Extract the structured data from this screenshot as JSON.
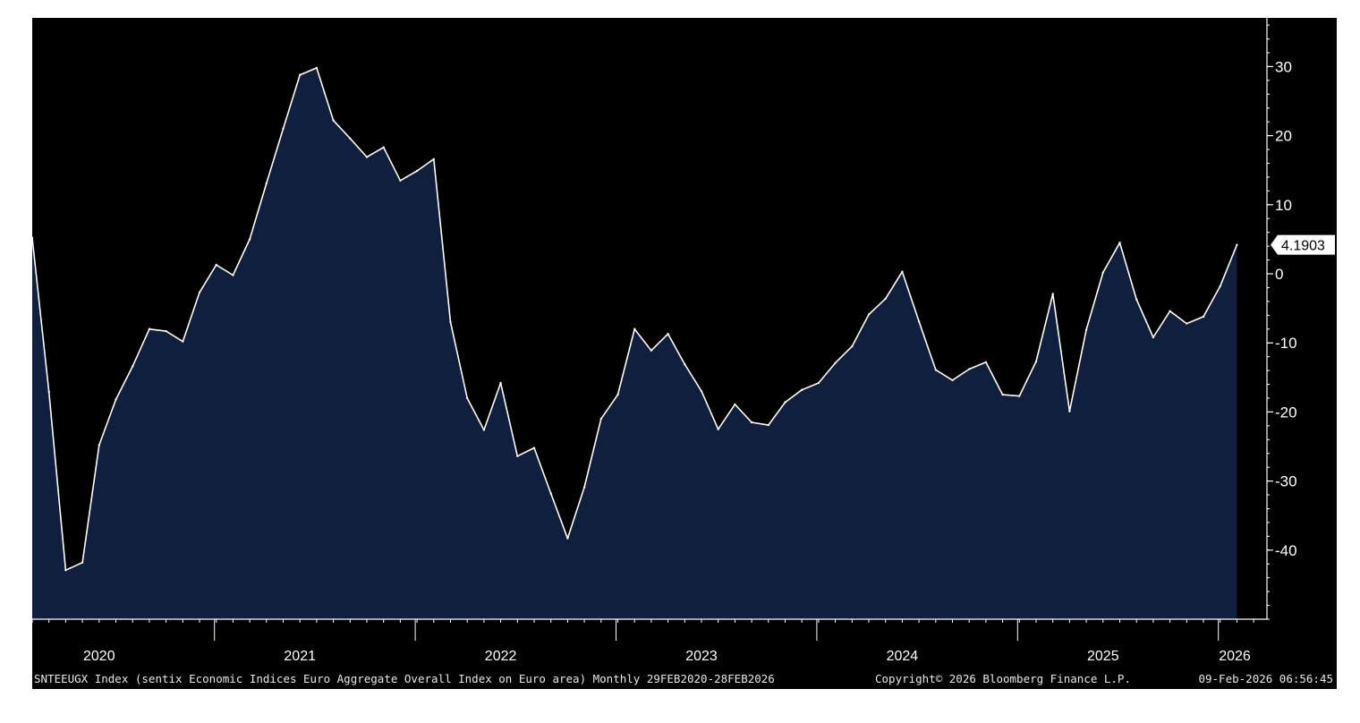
{
  "chart_data": {
    "type": "area",
    "y_ticks": [
      30,
      20,
      10,
      0,
      -10,
      -20,
      -30,
      -40
    ],
    "y_range": [
      -50,
      37
    ],
    "x_year_labels": [
      "2020",
      "2021",
      "2022",
      "2023",
      "2024",
      "2025",
      "2026"
    ],
    "last_value_label": "4.1903",
    "grid": false,
    "colors": {
      "background": "#000000",
      "area_fill": "#0f1f3d",
      "line": "#ffffff",
      "axis": "#ffffff",
      "text": "#ffffff"
    },
    "series": [
      {
        "x": [
          "2020-02",
          "2020-03",
          "2020-04",
          "2020-05",
          "2020-06",
          "2020-07",
          "2020-08",
          "2020-09",
          "2020-10",
          "2020-11",
          "2020-12",
          "2021-01",
          "2021-02",
          "2021-03",
          "2021-04",
          "2021-05",
          "2021-06",
          "2021-07",
          "2021-08",
          "2021-09",
          "2021-10",
          "2021-11",
          "2021-12",
          "2022-01",
          "2022-02",
          "2022-03",
          "2022-04",
          "2022-05",
          "2022-06",
          "2022-07",
          "2022-08",
          "2022-09",
          "2022-10",
          "2022-11",
          "2022-12",
          "2023-01",
          "2023-02",
          "2023-03",
          "2023-04",
          "2023-05",
          "2023-06",
          "2023-07",
          "2023-08",
          "2023-09",
          "2023-10",
          "2023-11",
          "2023-12",
          "2024-01",
          "2024-02",
          "2024-03",
          "2024-04",
          "2024-05",
          "2024-06",
          "2024-07",
          "2024-08",
          "2024-09",
          "2024-10",
          "2024-11",
          "2024-12",
          "2025-01",
          "2025-02",
          "2025-03",
          "2025-04",
          "2025-05",
          "2025-06",
          "2025-07",
          "2025-08",
          "2025-09",
          "2025-10",
          "2025-11",
          "2025-12",
          "2026-01",
          "2026-02"
        ],
        "values": [
          5.2,
          -17.1,
          -42.9,
          -41.8,
          -24.8,
          -18.2,
          -13.4,
          -8.0,
          -8.3,
          -9.8,
          -2.7,
          1.3,
          -0.2,
          5.0,
          13.1,
          21.0,
          28.8,
          29.8,
          22.2,
          19.6,
          16.9,
          18.3,
          13.5,
          14.9,
          16.6,
          -7.0,
          -18.0,
          -22.6,
          -15.8,
          -26.4,
          -25.2,
          -31.8,
          -38.3,
          -30.9,
          -21.0,
          -17.5,
          -8.0,
          -11.1,
          -8.7,
          -13.1,
          -17.0,
          -22.5,
          -18.9,
          -21.5,
          -21.9,
          -18.6,
          -16.8,
          -15.8,
          -12.9,
          -10.5,
          -5.9,
          -3.6,
          0.3,
          -6.9,
          -13.9,
          -15.4,
          -13.8,
          -12.8,
          -17.5,
          -17.7,
          -12.7,
          -2.9,
          -19.9,
          -8.1,
          0.2,
          4.5,
          -3.7,
          -9.2,
          -5.4,
          -7.2,
          -6.2,
          -1.8,
          4.19
        ]
      }
    ]
  },
  "footer": {
    "description": "SNTEEUGX Index (sentix Economic Indices Euro Aggregate  Overall Index on Euro area) Monthly 29FEB2020-28FEB2026",
    "copyright": "Copyright© 2026 Bloomberg Finance L.P.",
    "timestamp": "09-Feb-2026 06:56:45"
  }
}
